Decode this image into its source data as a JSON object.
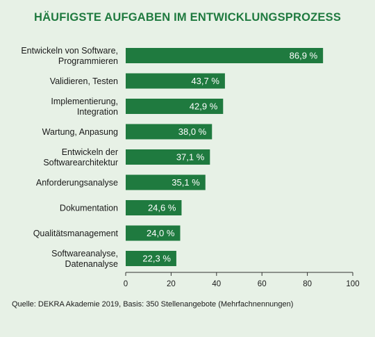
{
  "chart_data": {
    "type": "bar",
    "orientation": "horizontal",
    "title": "HÄUFIGSTE AUFGABEN IM ENTWICKLUNGSPROZESS",
    "categories": [
      "Entwickeln von Software, Programmieren",
      "Validieren, Testen",
      "Implementierung, Integration",
      "Wartung, Anpasung",
      "Entwickeln der Softwarearchitektur",
      "Anforderungsanalyse",
      "Dokumentation",
      "Qualitätsmanagement",
      "Softwareanalyse, Datenanalyse"
    ],
    "category_lines": [
      [
        "Entwickeln von Software,",
        "Programmieren"
      ],
      [
        "Validieren, Testen"
      ],
      [
        "Implementierung,",
        "Integration"
      ],
      [
        "Wartung, Anpasung"
      ],
      [
        "Entwickeln der",
        "Softwarearchitektur"
      ],
      [
        "Anforderungsanalyse"
      ],
      [
        "Dokumentation"
      ],
      [
        "Qualitätsmanagement"
      ],
      [
        "Softwareanalyse,",
        "Datenanalyse"
      ]
    ],
    "values": [
      86.9,
      43.7,
      42.9,
      38.0,
      37.1,
      35.1,
      24.6,
      24.0,
      22.3
    ],
    "value_labels": [
      "86,9 %",
      "43,7 %",
      "42,9 %",
      "38,0 %",
      "37,1 %",
      "35,1 %",
      "24,6 %",
      "24,0 %",
      "22,3 %"
    ],
    "xlim": [
      0,
      100
    ],
    "xticks": [
      "0",
      "20",
      "40",
      "60",
      "80",
      "100"
    ],
    "xlabel": "",
    "ylabel": "",
    "grid": false,
    "legend": "none",
    "bar_color": "#1f7a3f",
    "background_color": "#e7f1e6"
  },
  "source_note": "Quelle: DEKRA Akademie 2019, Basis: 350 Stellenangebote (Mehrfachnennungen)"
}
